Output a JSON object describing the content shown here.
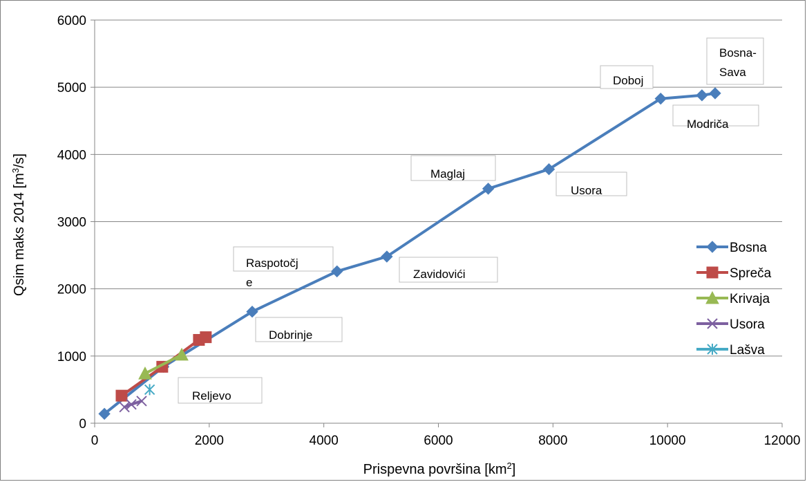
{
  "chart_data": {
    "type": "line",
    "xlabel_main": "Prispevna površina [km",
    "xlabel_sup": "2",
    "xlabel_end": "]",
    "ylabel_main": "Qsim maks 2014 [m",
    "ylabel_sup": "3",
    "ylabel_end": "/s]",
    "xlim": [
      0,
      12000
    ],
    "ylim": [
      0,
      6000
    ],
    "xticks": [
      "0",
      "2000",
      "4000",
      "6000",
      "8000",
      "10000",
      "12000"
    ],
    "yticks": [
      "0",
      "1000",
      "2000",
      "3000",
      "4000",
      "5000",
      "6000"
    ],
    "grid": "horizontal",
    "legend_position": "right",
    "series": [
      {
        "name": "Bosna",
        "color": "#4a7ebb",
        "marker": "diamond",
        "points": [
          [
            170,
            140
          ],
          [
            1200,
            840
          ],
          [
            2750,
            1660
          ],
          [
            4230,
            2260
          ],
          [
            5100,
            2480
          ],
          [
            6870,
            3490
          ],
          [
            7930,
            3780
          ],
          [
            9880,
            4830
          ],
          [
            10600,
            4880
          ],
          [
            10830,
            4910
          ]
        ]
      },
      {
        "name": "Spreča",
        "color": "#be4b48",
        "marker": "square",
        "points": [
          [
            470,
            410
          ],
          [
            1180,
            840
          ],
          [
            1820,
            1240
          ],
          [
            1940,
            1280
          ]
        ]
      },
      {
        "name": "Krivaja",
        "color": "#98b954",
        "marker": "triangle",
        "points": [
          [
            880,
            740
          ],
          [
            1520,
            1020
          ]
        ]
      },
      {
        "name": "Usora",
        "color": "#7d60a0",
        "marker": "x",
        "points": [
          [
            520,
            240
          ],
          [
            640,
            280
          ],
          [
            820,
            330
          ]
        ]
      },
      {
        "name": "Lašva",
        "color": "#46aac5",
        "marker": "star",
        "points": [
          [
            960,
            500
          ]
        ]
      }
    ],
    "annotations": [
      {
        "lines": [
          "Bosna-",
          "Sava"
        ]
      },
      {
        "lines": [
          "Doboj"
        ]
      },
      {
        "lines": [
          "Modriča"
        ]
      },
      {
        "lines": [
          "Maglaj"
        ]
      },
      {
        "lines": [
          "Usora"
        ]
      },
      {
        "lines": [
          "Raspotočj",
          "e"
        ]
      },
      {
        "lines": [
          "Zavidovići"
        ]
      },
      {
        "lines": [
          "Dobrinje"
        ]
      },
      {
        "lines": [
          "Reljevo"
        ]
      }
    ]
  }
}
